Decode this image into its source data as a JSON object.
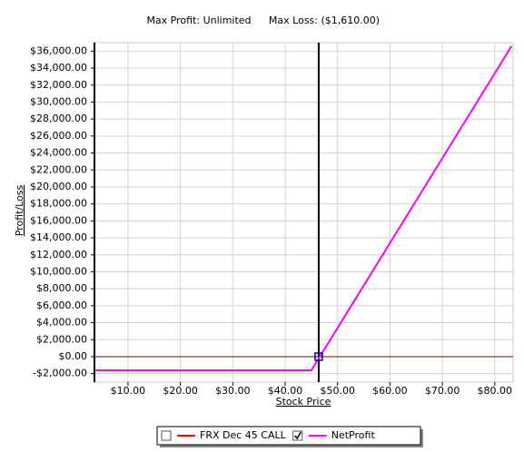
{
  "chart_data": {
    "type": "line",
    "max_profit_label": "Max Profit: Unlimited",
    "max_loss_label": "Max Loss: ($1,610.00)",
    "x_label": "Stock Price",
    "y_label": "Profit/Loss",
    "xlim": [
      3.6,
      83.5
    ],
    "ylim": [
      -3000,
      37000
    ],
    "grid": true,
    "xticks": [
      {
        "value": 10,
        "label": "$10.00"
      },
      {
        "value": 20,
        "label": "$20.00"
      },
      {
        "value": 30,
        "label": "$30.00"
      },
      {
        "value": 40,
        "label": "$40.00"
      },
      {
        "value": 50,
        "label": "$50.00"
      },
      {
        "value": 60,
        "label": "$60.00"
      },
      {
        "value": 70,
        "label": "$70.00"
      },
      {
        "value": 80,
        "label": "$80.00"
      }
    ],
    "yticks": [
      {
        "value": -2000,
        "label": "-$2,000.00"
      },
      {
        "value": 0,
        "label": "$0.00"
      },
      {
        "value": 2000,
        "label": "$2,000.00"
      },
      {
        "value": 4000,
        "label": "$4,000.00"
      },
      {
        "value": 6000,
        "label": "$6,000.00"
      },
      {
        "value": 8000,
        "label": "$8,000.00"
      },
      {
        "value": 10000,
        "label": "$10,000.00"
      },
      {
        "value": 12000,
        "label": "$12,000.00"
      },
      {
        "value": 14000,
        "label": "$14,000.00"
      },
      {
        "value": 16000,
        "label": "$16,000.00"
      },
      {
        "value": 18000,
        "label": "$18,000.00"
      },
      {
        "value": 20000,
        "label": "$20,000.00"
      },
      {
        "value": 22000,
        "label": "$22,000.00"
      },
      {
        "value": 24000,
        "label": "$24,000.00"
      },
      {
        "value": 26000,
        "label": "$26,000.00"
      },
      {
        "value": 28000,
        "label": "$28,000.00"
      },
      {
        "value": 30000,
        "label": "$30,000.00"
      },
      {
        "value": 32000,
        "label": "$32,000.00"
      },
      {
        "value": 34000,
        "label": "$34,000.00"
      },
      {
        "value": 36000,
        "label": "$36,000.00"
      }
    ],
    "current_price": 46.4,
    "zero_line_color": "#800000",
    "series": [
      {
        "name": "FRX Dec 45 CALL",
        "color": "#ff0000",
        "checked": false
      },
      {
        "name": "NetProfit",
        "color": "#ff00ff",
        "checked": true,
        "x": [
          3.6,
          45,
          83.2
        ],
        "values": [
          -1610,
          -1610,
          36590
        ]
      }
    ]
  }
}
